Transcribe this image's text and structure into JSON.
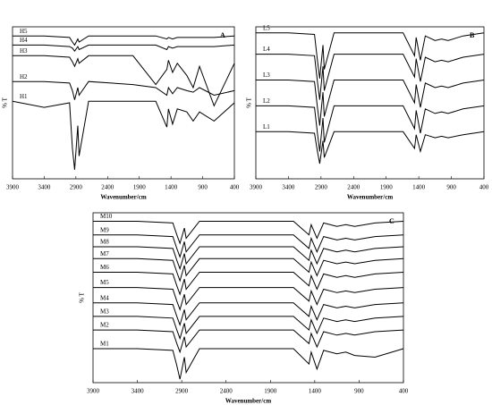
{
  "chart_data": [
    {
      "type": "line",
      "title": "A",
      "x_label": "Wavenumber/cm",
      "y_label": "% T",
      "color": "#000000",
      "x": [
        3900,
        3400,
        3000,
        2955,
        2920,
        2870,
        2850,
        2700,
        2000,
        1640,
        1465,
        1440,
        1375,
        1300,
        1150,
        1050,
        950,
        720,
        400
      ],
      "xlim": [
        3900,
        400
      ],
      "xticks": [
        3900,
        3400,
        2900,
        2400,
        1900,
        1400,
        900,
        400
      ],
      "ylim": [
        0,
        100
      ],
      "series": [
        {
          "name": "H5",
          "values": [
            94,
            94,
            93,
            90,
            88,
            92,
            90,
            94,
            94,
            94,
            92,
            93,
            92,
            93,
            93,
            93,
            93,
            93,
            94
          ]
        },
        {
          "name": "H4",
          "values": [
            88,
            88,
            87,
            86,
            84,
            87,
            85,
            88,
            88,
            88,
            85,
            87,
            86,
            87,
            87,
            87,
            87,
            87,
            88
          ]
        },
        {
          "name": "H3",
          "values": [
            81,
            81,
            80,
            77,
            74,
            79,
            76,
            81,
            81,
            62,
            72,
            78,
            70,
            76,
            68,
            60,
            74,
            48,
            76
          ]
        },
        {
          "name": "H2",
          "values": [
            64,
            64,
            63,
            58,
            52,
            60,
            55,
            64,
            62,
            60,
            55,
            60,
            56,
            60,
            58,
            57,
            60,
            55,
            58
          ]
        },
        {
          "name": "H1",
          "values": [
            51,
            47,
            50,
            20,
            6,
            35,
            15,
            51,
            51,
            51,
            34,
            46,
            36,
            46,
            44,
            38,
            44,
            38,
            50
          ]
        }
      ]
    },
    {
      "type": "line",
      "title": "B",
      "x_label": "Wavenumber/cm",
      "y_label": "% T",
      "color": "#000000",
      "x": [
        3900,
        3400,
        3000,
        2955,
        2920,
        2870,
        2850,
        2700,
        2000,
        1640,
        1465,
        1440,
        1375,
        1300,
        1150,
        1050,
        950,
        720,
        400
      ],
      "xlim": [
        3900,
        400
      ],
      "xticks": [
        3900,
        3400,
        2900,
        2400,
        1900,
        1400,
        900,
        400
      ],
      "ylim": [
        0,
        100
      ],
      "series": [
        {
          "name": "L5",
          "values": [
            96,
            96,
            95,
            78,
            66,
            88,
            72,
            96,
            96,
            96,
            81,
            93,
            78,
            94,
            91,
            92,
            91,
            94,
            96
          ]
        },
        {
          "name": "L4",
          "values": [
            82,
            82,
            81,
            64,
            52,
            74,
            58,
            82,
            82,
            82,
            67,
            79,
            64,
            80,
            77,
            78,
            77,
            80,
            82
          ]
        },
        {
          "name": "L3",
          "values": [
            65,
            65,
            64,
            47,
            35,
            57,
            41,
            65,
            65,
            65,
            50,
            62,
            47,
            63,
            60,
            61,
            60,
            63,
            65
          ]
        },
        {
          "name": "L2",
          "values": [
            48,
            48,
            47,
            30,
            18,
            40,
            24,
            48,
            48,
            48,
            33,
            45,
            30,
            46,
            43,
            44,
            43,
            46,
            48
          ]
        },
        {
          "name": "L1",
          "values": [
            31,
            31,
            30,
            18,
            10,
            25,
            14,
            31,
            31,
            31,
            20,
            29,
            18,
            29,
            27,
            28,
            27,
            29,
            31
          ]
        }
      ]
    },
    {
      "type": "line",
      "title": "C",
      "x_label": "Wavenumber/cm",
      "y_label": "% T",
      "color": "#000000",
      "x": [
        3900,
        3400,
        3000,
        2955,
        2920,
        2870,
        2850,
        2700,
        2000,
        1640,
        1465,
        1440,
        1375,
        1300,
        1150,
        1050,
        950,
        720,
        400
      ],
      "xlim": [
        3900,
        400
      ],
      "xticks": [
        3900,
        3400,
        2900,
        2400,
        1900,
        1400,
        900,
        400
      ],
      "ylim": [
        0,
        100
      ],
      "series": [
        {
          "name": "M10",
          "values": [
            95,
            95,
            94,
            87,
            82,
            91,
            85,
            95,
            95,
            95,
            87,
            93,
            85,
            94,
            92,
            93,
            92,
            94,
            95
          ]
        },
        {
          "name": "M9",
          "values": [
            87,
            87,
            86,
            79,
            74,
            83,
            77,
            87,
            87,
            87,
            79,
            85,
            77,
            86,
            84,
            85,
            84,
            86,
            87
          ]
        },
        {
          "name": "M8",
          "values": [
            80,
            80,
            79,
            72,
            67,
            76,
            70,
            80,
            80,
            80,
            72,
            78,
            70,
            79,
            77,
            78,
            77,
            79,
            80
          ]
        },
        {
          "name": "M7",
          "values": [
            73,
            73,
            72,
            65,
            60,
            69,
            63,
            73,
            73,
            73,
            65,
            71,
            63,
            72,
            70,
            71,
            70,
            72,
            73
          ]
        },
        {
          "name": "M6",
          "values": [
            65,
            65,
            64,
            57,
            52,
            61,
            55,
            65,
            65,
            65,
            57,
            63,
            55,
            64,
            62,
            63,
            62,
            64,
            65
          ]
        },
        {
          "name": "M5",
          "values": [
            56,
            56,
            55,
            48,
            43,
            52,
            46,
            56,
            56,
            56,
            48,
            54,
            46,
            55,
            53,
            54,
            53,
            55,
            56
          ]
        },
        {
          "name": "M4",
          "values": [
            47,
            47,
            46,
            39,
            34,
            43,
            37,
            47,
            47,
            47,
            39,
            45,
            37,
            46,
            44,
            45,
            44,
            46,
            47
          ]
        },
        {
          "name": "M3",
          "values": [
            39,
            39,
            38,
            31,
            26,
            35,
            29,
            39,
            39,
            39,
            31,
            37,
            29,
            38,
            36,
            37,
            36,
            38,
            39
          ]
        },
        {
          "name": "M2",
          "values": [
            31,
            31,
            30,
            23,
            18,
            27,
            21,
            31,
            31,
            31,
            23,
            29,
            21,
            30,
            28,
            29,
            28,
            30,
            31
          ]
        },
        {
          "name": "M1",
          "values": [
            20,
            20,
            19,
            10,
            2,
            15,
            6,
            20,
            20,
            20,
            11,
            18,
            8,
            19,
            17,
            18,
            16,
            15,
            20
          ]
        }
      ]
    }
  ]
}
